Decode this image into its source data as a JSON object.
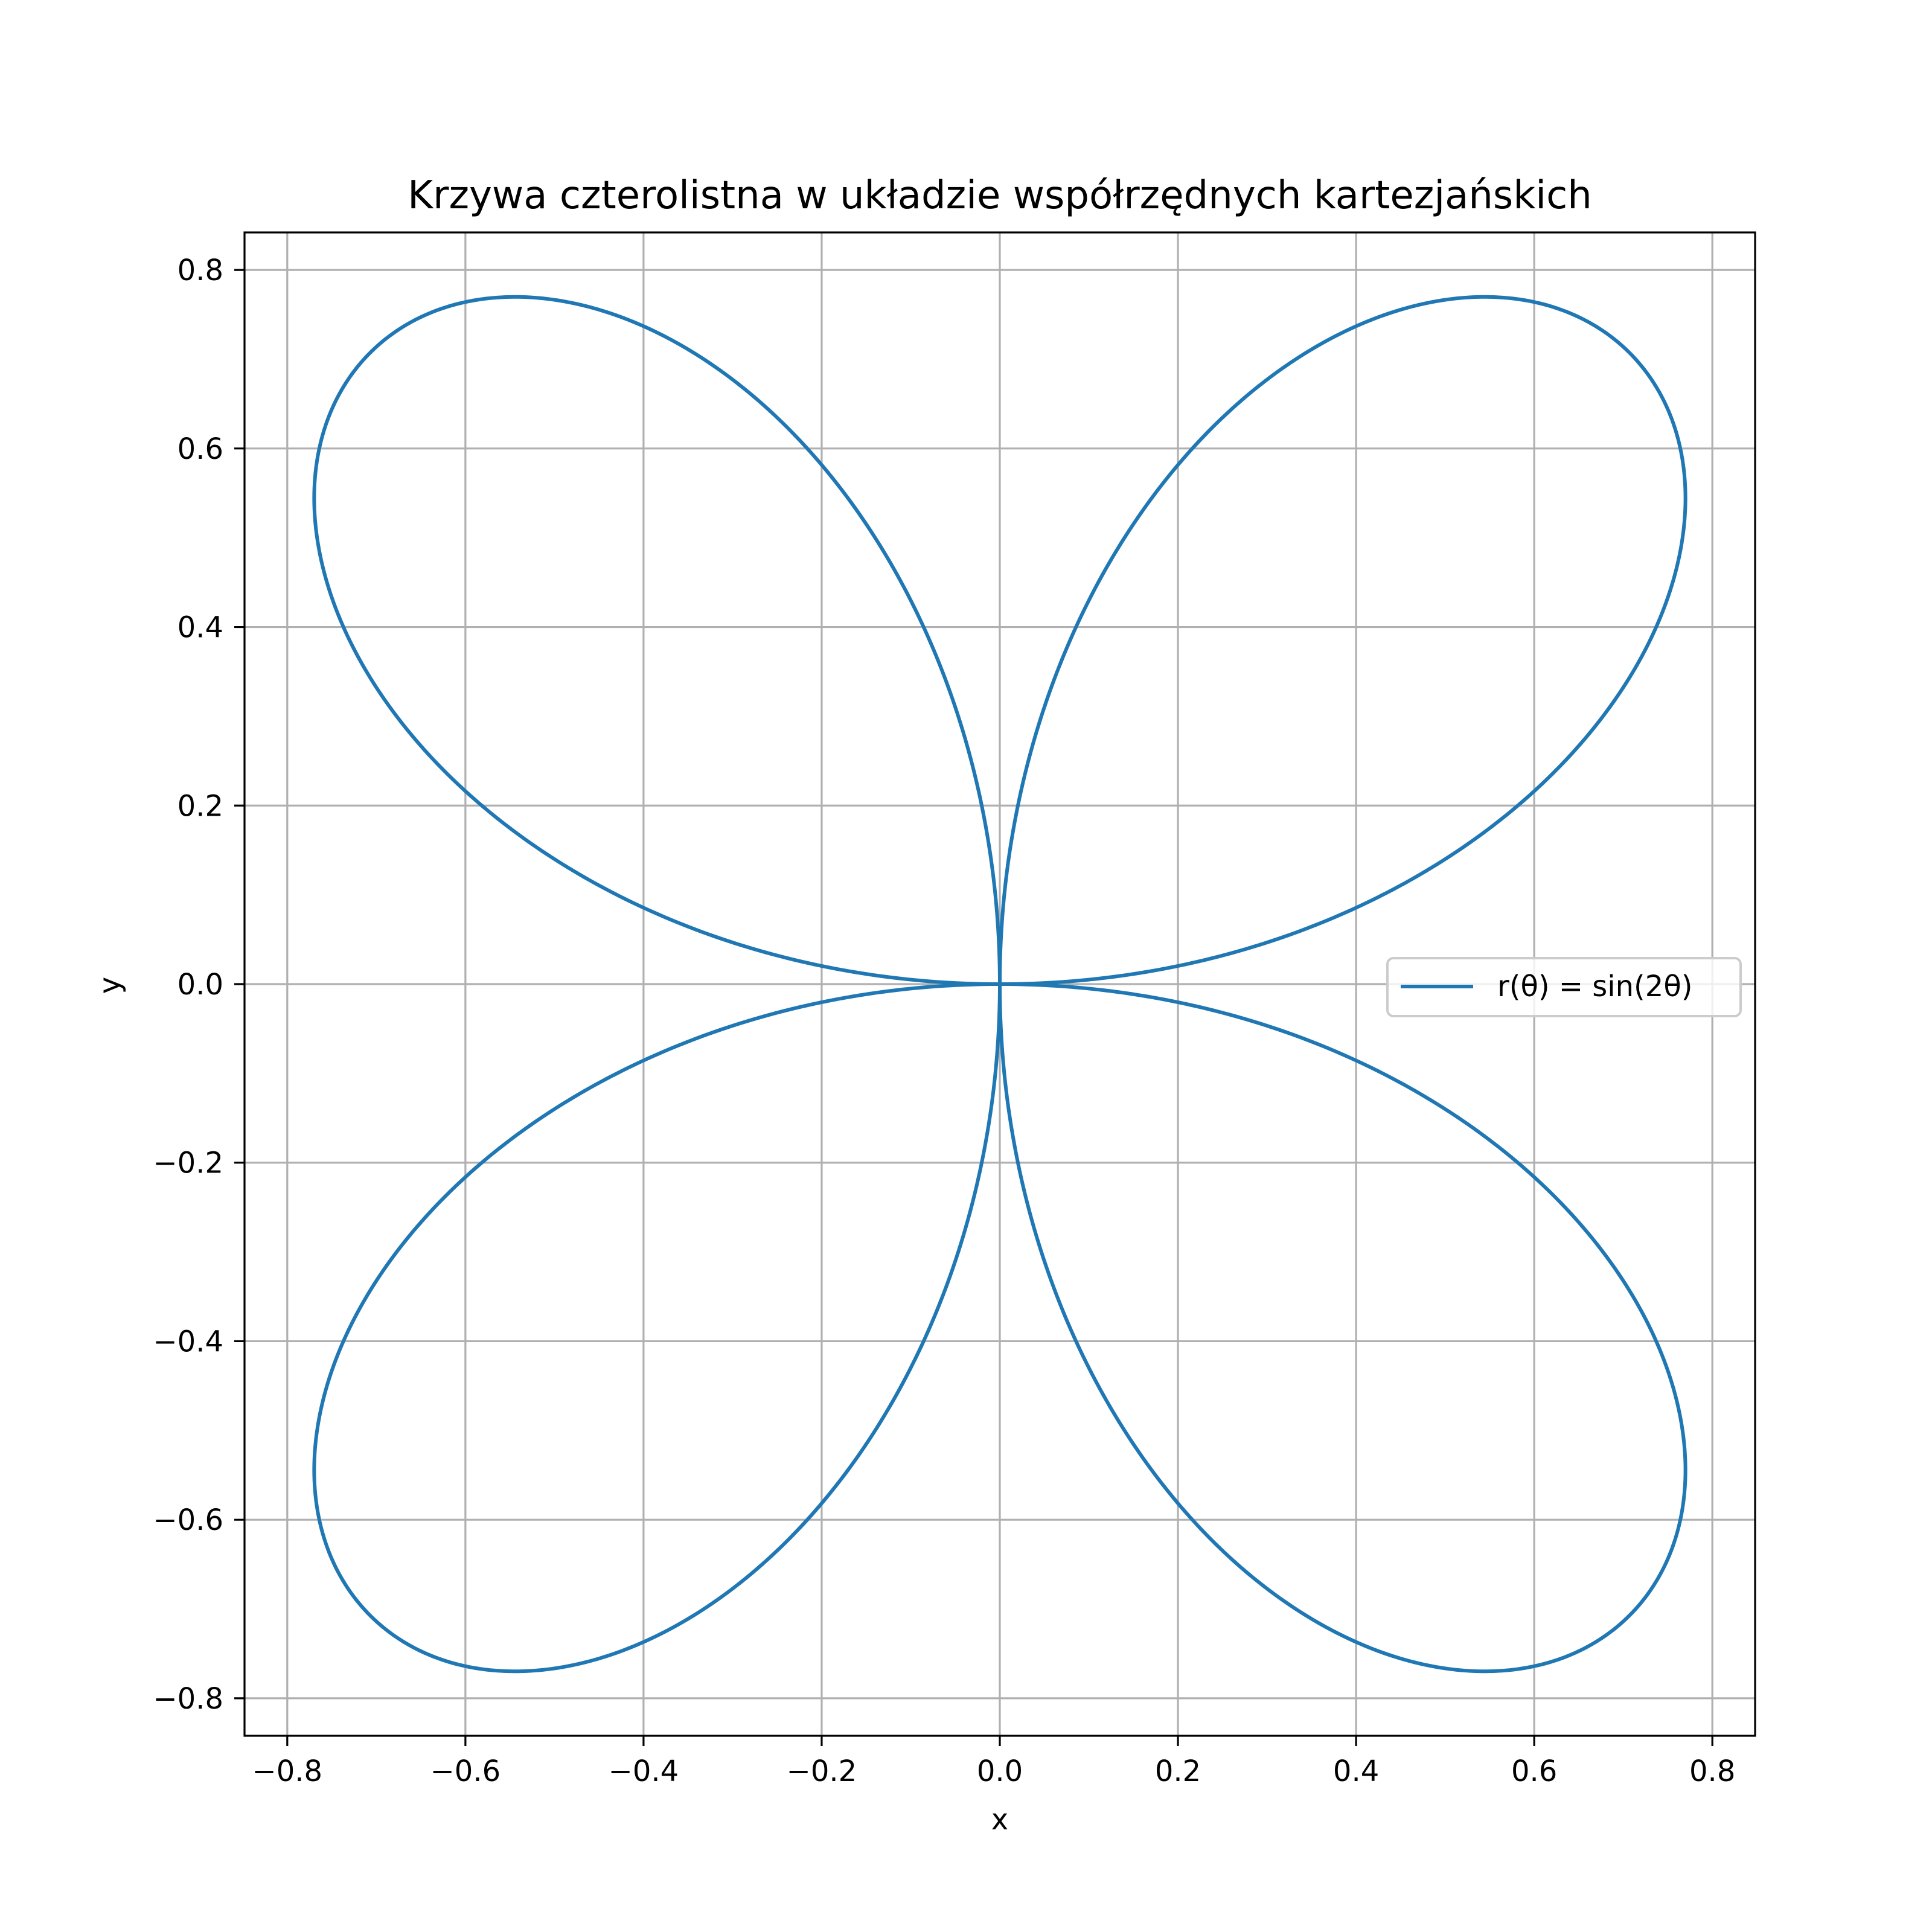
{
  "chart_data": {
    "type": "line",
    "title": "Krzywa czterolistna w układzie współrzędnych kartezjańskich",
    "xlabel": "x",
    "ylabel": "y",
    "xlim": [
      -0.848,
      0.848
    ],
    "ylim": [
      -0.842,
      0.842
    ],
    "xticks": [
      -0.8,
      -0.6,
      -0.4,
      -0.2,
      0.0,
      0.2,
      0.4,
      0.6,
      0.8
    ],
    "yticks": [
      -0.8,
      -0.6,
      -0.4,
      -0.2,
      0.0,
      0.2,
      0.4,
      0.6,
      0.8
    ],
    "xtick_labels": [
      "−0.8",
      "−0.6",
      "−0.4",
      "−0.2",
      "0.0",
      "0.2",
      "0.4",
      "0.6",
      "0.8"
    ],
    "ytick_labels": [
      "−0.8",
      "−0.6",
      "−0.4",
      "−0.2",
      "0.0",
      "0.2",
      "0.4",
      "0.6",
      "0.8"
    ],
    "grid": true,
    "legend_position": "center-right",
    "series": [
      {
        "name": "r(θ) = sin(2θ)",
        "equation": "r(θ) = sin(2θ)",
        "theta_range": [
          0,
          6.283185307
        ],
        "color": "#1f77b4"
      }
    ]
  },
  "colors": {
    "line": "#1f77b4",
    "grid": "#b0b0b0",
    "axes": "#000000",
    "background": "#ffffff"
  }
}
